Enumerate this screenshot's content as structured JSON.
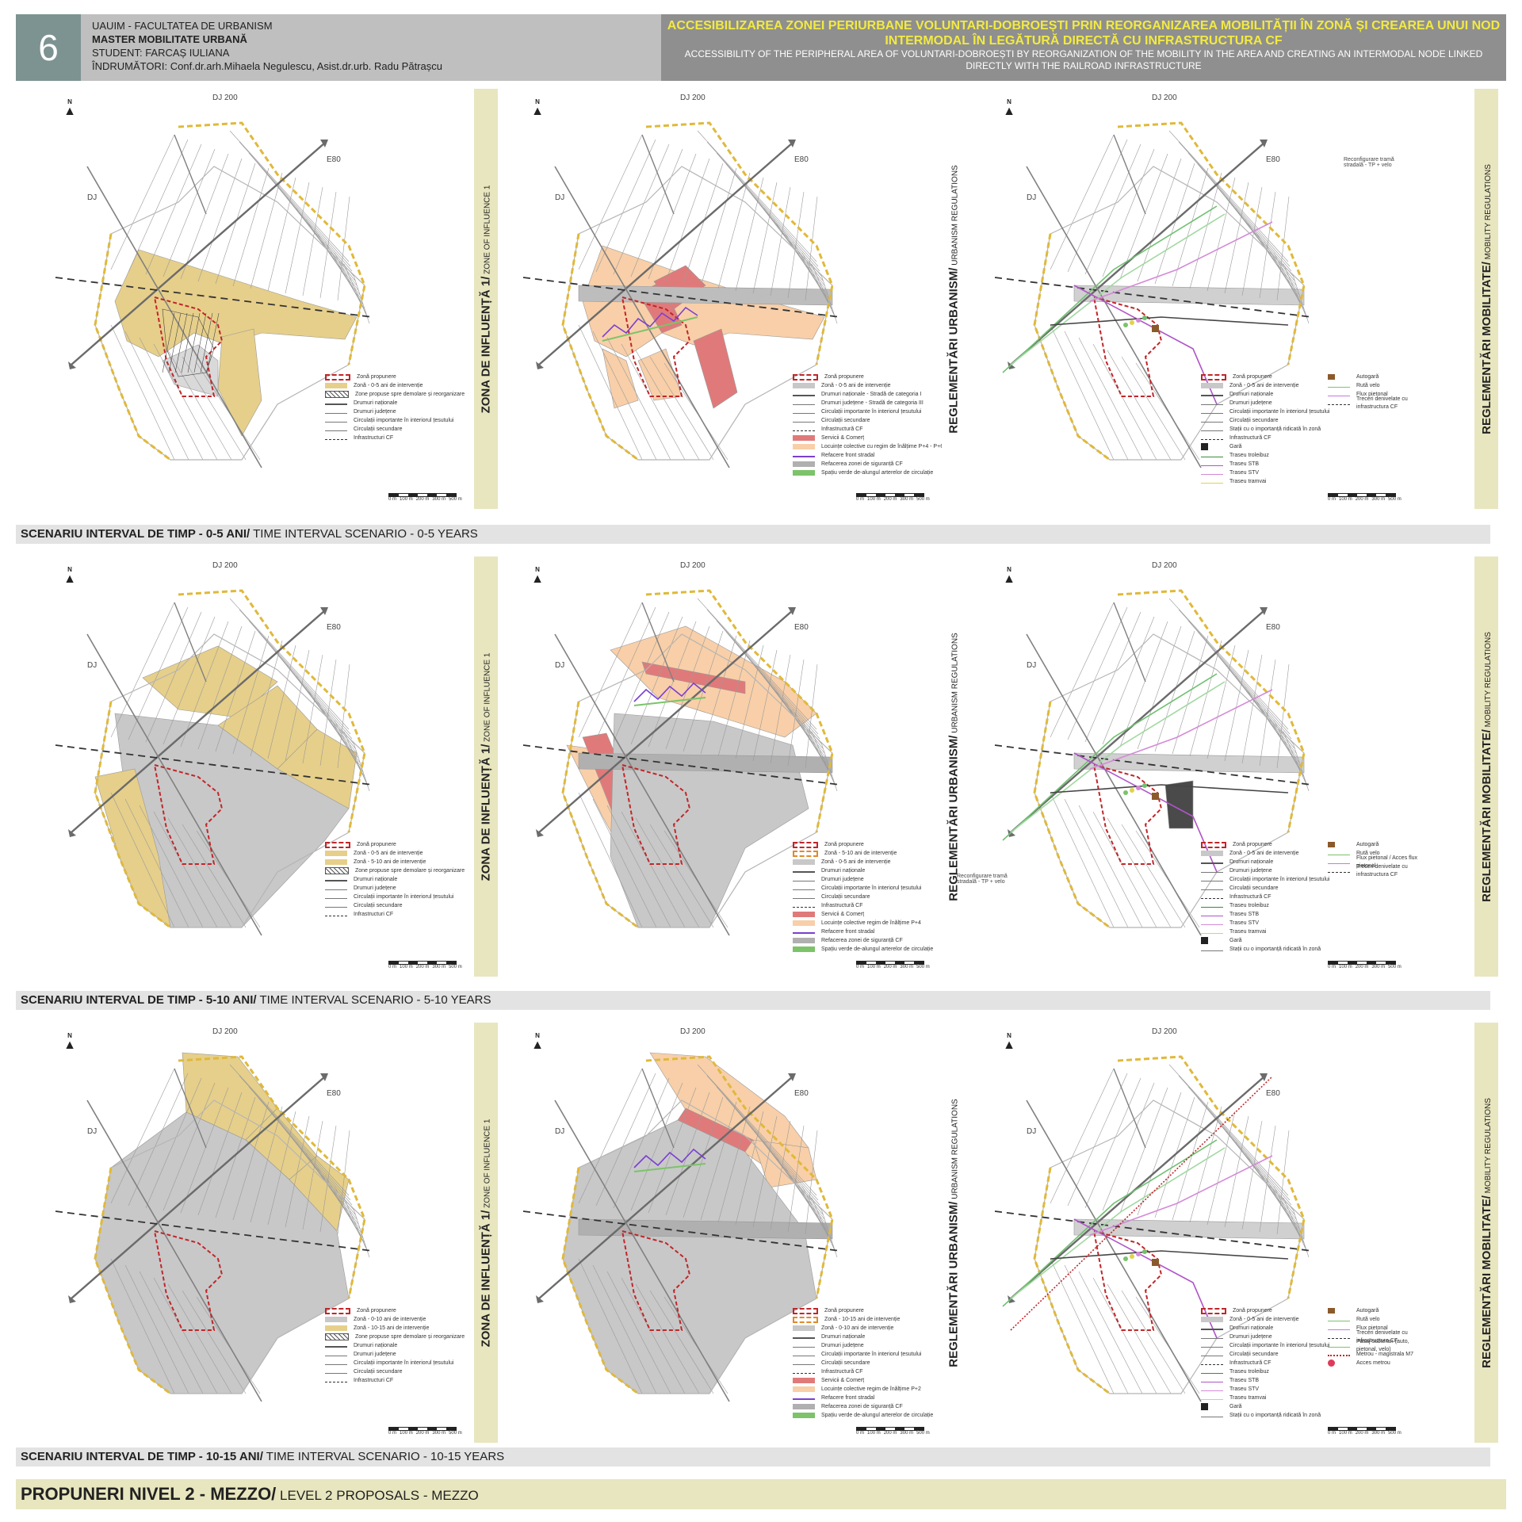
{
  "header": {
    "number": "6",
    "university": "UAUIM - FACULTATEA DE URBANISM",
    "program": "MASTER MOBILITATE URBANĂ",
    "student_label": "STUDENT:",
    "student_name": "FARCAȘ IULIANA",
    "advisors_label": "ÎNDRUMĂTORI:",
    "advisors": "Conf.dr.arh.Mihaela Negulescu, Asist.dr.urb. Radu Pătrașcu",
    "title_ro": "ACCESIBILIZAREA ZONEI PERIURBANE VOLUNTARI-DOBROEȘTI PRIN REORGANIZAREA MOBILITĂȚII ÎN ZONĂ ȘI CREAREA UNUI NOD INTERMODAL ÎN LEGĂTURĂ DIRECTĂ CU INFRASTRUCTURA CF",
    "title_en": "ACCESSIBILITY OF THE PERIPHERAL AREA OF VOLUNTARI-DOBROEȘTI BY REORGANIZATION OF THE MOBILITY IN THE AREA  AND CREATING AN INTERMODAL NODE LINKED DIRECTLY WITH THE RAILROAD INFRASTRUCTURE"
  },
  "map_labels": {
    "dj200": "DJ 200",
    "e80": "E80",
    "dj": "DJ",
    "north": "N",
    "reconf": "Reconfigurare tramă stradală - TP + velo"
  },
  "scale": [
    "0 m",
    "100 m",
    "200 m",
    "300 m",
    "500 m"
  ],
  "columns": {
    "zone": {
      "bold": "ZONA DE INFLUENȚĂ 1/",
      "rest": " ZONE OF INFLUENCE 1"
    },
    "urb": {
      "bold": "REGLEMENTĂRI URBANISM/",
      "rest": " URBANISM REGULATIONS"
    },
    "mob": {
      "bold": "REGLEMENTĂRI MOBILITATE/",
      "rest": " MOBILITY REGULATIONS"
    }
  },
  "scenarios": [
    {
      "bold": "SCENARIU INTERVAL DE TIMP - 0-5 ANI/",
      "rest": " TIME INTERVAL SCENARIO - 0-5 YEARS"
    },
    {
      "bold": "SCENARIU INTERVAL DE TIMP - 5-10 ANI/",
      "rest": " TIME INTERVAL SCENARIO - 5-10 YEARS"
    },
    {
      "bold": "SCENARIU INTERVAL DE TIMP - 10-15 ANI/",
      "rest": " TIME INTERVAL SCENARIO - 10-15 YEARS"
    }
  ],
  "footer": {
    "bold": "PROPUNERI NIVEL 2 - MEZZO/",
    "rest": " LEVEL 2 PROPOSALS - MEZZO"
  },
  "legends": {
    "zone_0_5": [
      "Zonă propunere",
      "Zonă - 0-5 ani de intervenție",
      "Zone propuse spre demolare și reorganizare",
      "Drumuri naționale",
      "Drumuri județene",
      "Circulații importante în interiorul țesutului",
      "Circulații secundare",
      "Infrastructuri CF"
    ],
    "urb_0_5": [
      "Zonă propunere",
      "Zonă - 0-5 ani de intervenție",
      "Drumuri naționale - Stradă de categoria I",
      "Drumuri județene - Stradă de categoria III",
      "Circulații importante în interiorul țesutului",
      "Circulații secundare",
      "Infrastructură CF",
      "Servicii & Comerț",
      "Locuințe colective cu regim de înălțime P+4 - P+6",
      "Refacere front stradal",
      "Refacerea zonei de siguranță CF",
      "Spațiu verde de-alungul arterelor de circulație"
    ],
    "mob_0_5_a": [
      "Zonă propunere",
      "Zonă - 0-5 ani de intervenție",
      "Drumuri naționale",
      "Drumuri județene",
      "Circulații importante în interiorul țesutului",
      "Circulații secundare",
      "Stații cu o importanță ridicată în zonă",
      "Infrastructură CF",
      "Gară",
      "Traseu troleibuz",
      "Traseu STB",
      "Traseu STV",
      "Traseu tramvai"
    ],
    "mob_0_5_b": [
      "Autogară",
      "Rută velo",
      "Flux pietonal",
      "Treceri denivelate cu infrastructura CF"
    ],
    "zone_5_10": [
      "Zonă propunere",
      "Zonă - 0-5 ani de intervenție",
      "Zonă - 5-10 ani de intervenție",
      "Zone propuse spre demolare și reorganizare",
      "Drumuri naționale",
      "Drumuri județene",
      "Circulații importante în interiorul țesutului",
      "Circulații secundare",
      "Infrastructuri CF"
    ],
    "urb_5_10": [
      "Zonă propunere",
      "Zonă - 5-10 ani de intervenție",
      "Zonă - 0-5 ani de intervenție",
      "Drumuri naționale",
      "Drumuri județene",
      "Circulații importante în interiorul țesutului",
      "Circulații secundare",
      "Infrastructură CF",
      "Servicii & Comerț",
      "Locuințe colective regim de înălțime P+4",
      "Refacere front stradal",
      "Refacerea zonei de siguranță CF",
      "Spațiu verde de-alungul arterelor de circulație"
    ],
    "mob_5_10_a": [
      "Zonă propunere",
      "Zonă - 0-5 ani de intervenție",
      "Drumuri naționale",
      "Drumuri județene",
      "Circulații importante în interiorul țesutului",
      "Circulații secundare",
      "Infrastructură CF",
      "Traseu troleibuz",
      "Traseu STB",
      "Traseu STV",
      "Traseu tramvai",
      "Gară",
      "Stații cu o importanță ridicată în zonă"
    ],
    "mob_5_10_b": [
      "Autogară",
      "Rută velo",
      "Flux pietonal / Acces flux pietonal",
      "Treceri denivelate cu infrastructura CF"
    ],
    "zone_10_15": [
      "Zonă propunere",
      "Zonă - 0-10 ani de intervenție",
      "Zonă - 10-15 ani de intervenție",
      "Zone propuse spre demolare și reorganizare",
      "Drumuri naționale",
      "Drumuri județene",
      "Circulații importante în interiorul țesutului",
      "Circulații secundare",
      "Infrastructuri CF"
    ],
    "urb_10_15": [
      "Zonă propunere",
      "Zonă - 10-15 ani de intervenție",
      "Zonă - 0-10 ani de intervenție",
      "Drumuri naționale",
      "Drumuri județene",
      "Circulații importante în interiorul țesutului",
      "Circulații secundare",
      "Infrastructură CF",
      "Servicii & Comerț",
      "Locuințe colective regim de înălțime P+2",
      "Refacere front stradal",
      "Refacerea zonei de siguranță CF",
      "Spațiu verde de-alungul arterelor de circulație"
    ],
    "mob_10_15_a": [
      "Zonă propunere",
      "Zonă - 0-5 ani de intervenție",
      "Drumuri naționale",
      "Drumuri județene",
      "Circulații importante în interiorul țesutului",
      "Circulații secundare",
      "Infrastructură CF",
      "Traseu troleibuz",
      "Traseu STB",
      "Traseu STV",
      "Traseu tramvai",
      "Gară",
      "Stații cu o importanță ridicată în zonă"
    ],
    "mob_10_15_b": [
      "Autogară",
      "Rută velo",
      "Flux pietonal",
      "Treceri denivelate cu infrastructura CF",
      "Pasaj subteran (auto, pietonal, velo)",
      "Metrou - magistrala M7",
      "Acces metrou"
    ]
  },
  "colors": {
    "yellow_zone": "#e6cf8a",
    "grey_zone": "#c8c8c8",
    "salmon": "#f8cfa8",
    "red_service": "#e07a7a",
    "green": "#7cc36a",
    "purple": "#7b3fd1",
    "red_dash": "#c0262a",
    "orange_dash": "#e08a2a",
    "title_yellow": "#f2ea42"
  }
}
